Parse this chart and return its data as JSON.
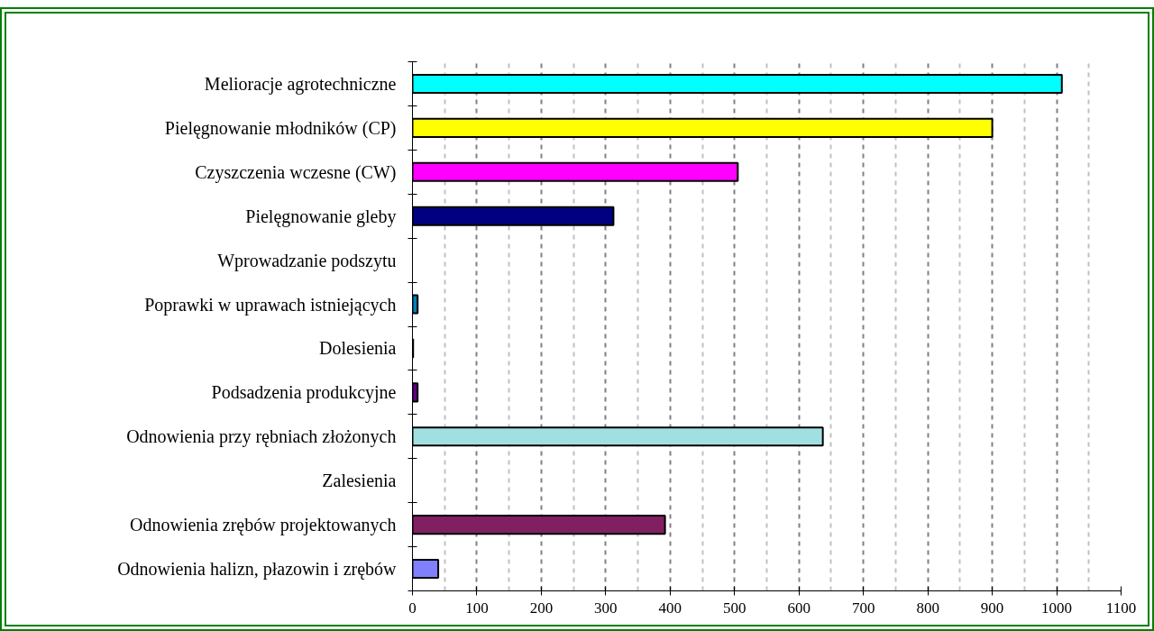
{
  "chart_data": {
    "type": "bar",
    "orientation": "horizontal",
    "categories": [
      "Melioracje agrotechniczne",
      "Pielęgnowanie młodników (CP)",
      "Czyszczenia wczesne (CW)",
      "Pielęgnowanie gleby",
      "Wprowadzanie podszytu",
      "Poprawki w uprawach istniejących",
      "Dolesienia",
      "Podsadzenia produkcyjne",
      "Odnowienia przy rębniach złożonych",
      "Zalesienia",
      "Odnowienia zrębów projektowanych",
      "Odnowienia halizn, płazowin i zrębów"
    ],
    "values": [
      1008,
      900,
      505,
      312,
      null,
      8,
      1,
      8,
      637,
      null,
      392,
      40
    ],
    "colors": [
      "#00ffff",
      "#ffff00",
      "#ff00ff",
      "#000080",
      null,
      "#0080c0",
      "#ff8080",
      "#600080",
      "#a0e0e0",
      null,
      "#802060",
      "#8080ff"
    ],
    "xlim": [
      0,
      1100
    ],
    "xticks": [
      0,
      100,
      200,
      300,
      400,
      500,
      600,
      700,
      800,
      900,
      1000,
      1100
    ],
    "grid": "x"
  }
}
